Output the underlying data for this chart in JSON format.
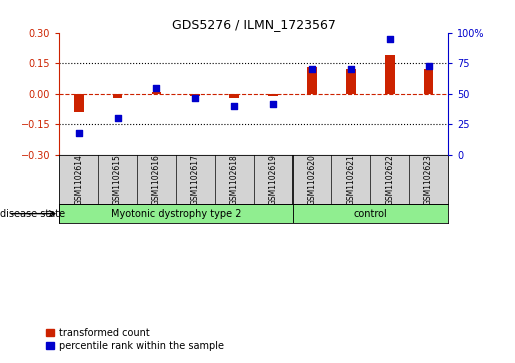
{
  "title": "GDS5276 / ILMN_1723567",
  "samples": [
    "GSM1102614",
    "GSM1102615",
    "GSM1102616",
    "GSM1102617",
    "GSM1102618",
    "GSM1102619",
    "GSM1102620",
    "GSM1102621",
    "GSM1102622",
    "GSM1102623"
  ],
  "red_values": [
    -0.09,
    -0.02,
    0.01,
    -0.01,
    -0.02,
    -0.01,
    0.13,
    0.12,
    0.19,
    0.12
  ],
  "blue_values": [
    18,
    30,
    55,
    47,
    40,
    42,
    70,
    70,
    95,
    73
  ],
  "group_labels": [
    "Myotonic dystrophy type 2",
    "control"
  ],
  "group_boundaries": [
    0,
    6,
    10
  ],
  "ylim_left": [
    -0.3,
    0.3
  ],
  "ylim_right": [
    0,
    100
  ],
  "yticks_left": [
    -0.3,
    -0.15,
    0,
    0.15,
    0.3
  ],
  "yticks_right": [
    0,
    25,
    50,
    75,
    100
  ],
  "ytick_right_labels": [
    "0",
    "25",
    "50",
    "75",
    "100%"
  ],
  "hlines_dotted": [
    0.15,
    -0.15
  ],
  "left_color": "#cc2200",
  "right_color": "#0000cc",
  "disease_state_label": "disease state",
  "legend_red": "transformed count",
  "legend_blue": "percentile rank within the sample",
  "bar_width": 0.25,
  "green_color": "#90EE90",
  "gray_color": "#d3d3d3"
}
